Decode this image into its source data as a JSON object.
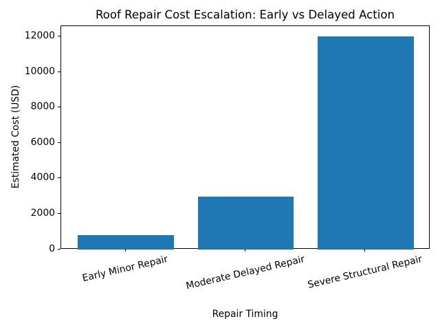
{
  "chart_data": {
    "type": "bar",
    "title": "Roof Repair Cost Escalation: Early vs Delayed Action",
    "xlabel": "Repair Timing",
    "ylabel": "Estimated Cost (USD)",
    "categories": [
      "Early Minor Repair",
      "Moderate Delayed Repair",
      "Severe Structural Repair"
    ],
    "values": [
      800,
      3000,
      12000
    ],
    "yticks": [
      0,
      2000,
      4000,
      6000,
      8000,
      10000,
      12000
    ],
    "ylim": [
      0,
      12600
    ],
    "xlim": [
      -0.54,
      2.54
    ],
    "bar_width_units": 0.8,
    "xtick_rotation_deg": 13,
    "grid": false,
    "legend": "none",
    "bar_color": "#1f77b4",
    "spine_color": "#000000",
    "text_color": "#000000",
    "background_color": "#ffffff"
  }
}
